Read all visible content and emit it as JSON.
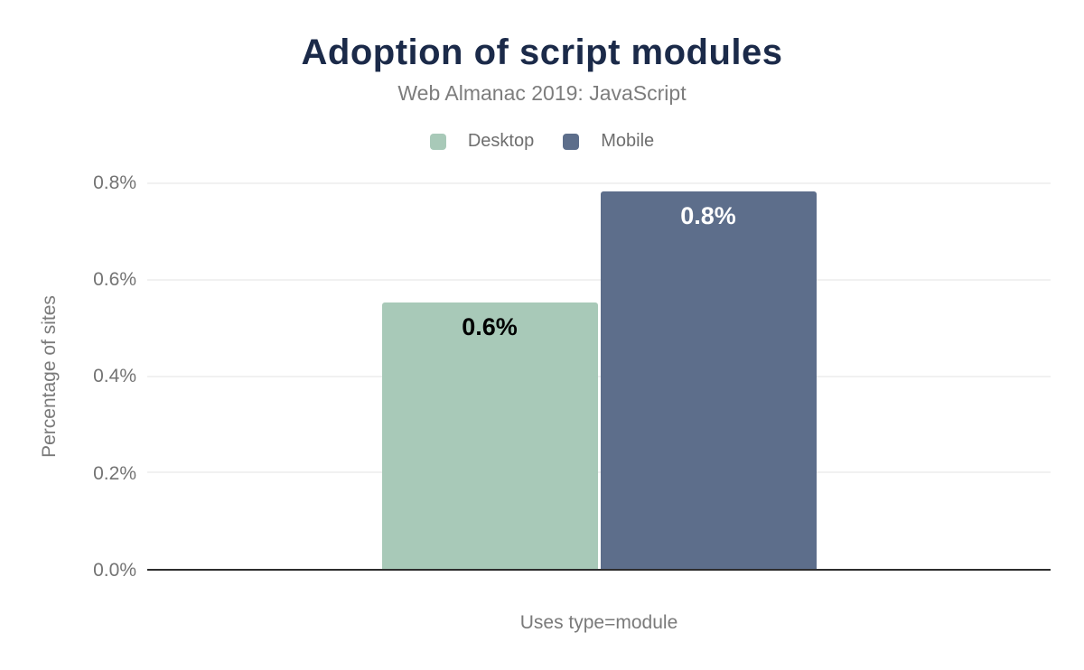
{
  "chart_data": {
    "type": "bar",
    "title": "Adoption of script modules",
    "subtitle": "Web Almanac 2019: JavaScript",
    "categories": [
      "Uses type=module"
    ],
    "series": [
      {
        "name": "Desktop",
        "values": [
          0.55
        ],
        "display_labels": [
          "0.6%"
        ],
        "color": "#a8c9b8",
        "label_color": "#000000"
      },
      {
        "name": "Mobile",
        "values": [
          0.78
        ],
        "display_labels": [
          "0.8%"
        ],
        "color": "#5d6e8b",
        "label_color": "#ffffff"
      }
    ],
    "xlabel": "Uses type=module",
    "ylabel": "Percentage of sites",
    "ylim": [
      0,
      0.8
    ],
    "yticks": [
      "0.8%",
      "0.6%",
      "0.4%",
      "0.2%",
      "0.0%"
    ],
    "ytick_values": [
      0.8,
      0.6,
      0.4,
      0.2,
      0.0
    ],
    "grid": true,
    "legend_position": "top"
  },
  "colors": {
    "title": "#1b2a49",
    "subtitle": "#7d7d7d",
    "axis_text": "#737373",
    "gridline": "#f1f1f1",
    "baseline": "#2d2d2d",
    "desktop_bar": "#a8c9b8",
    "mobile_bar": "#5d6e8b",
    "background": "#ffffff"
  }
}
